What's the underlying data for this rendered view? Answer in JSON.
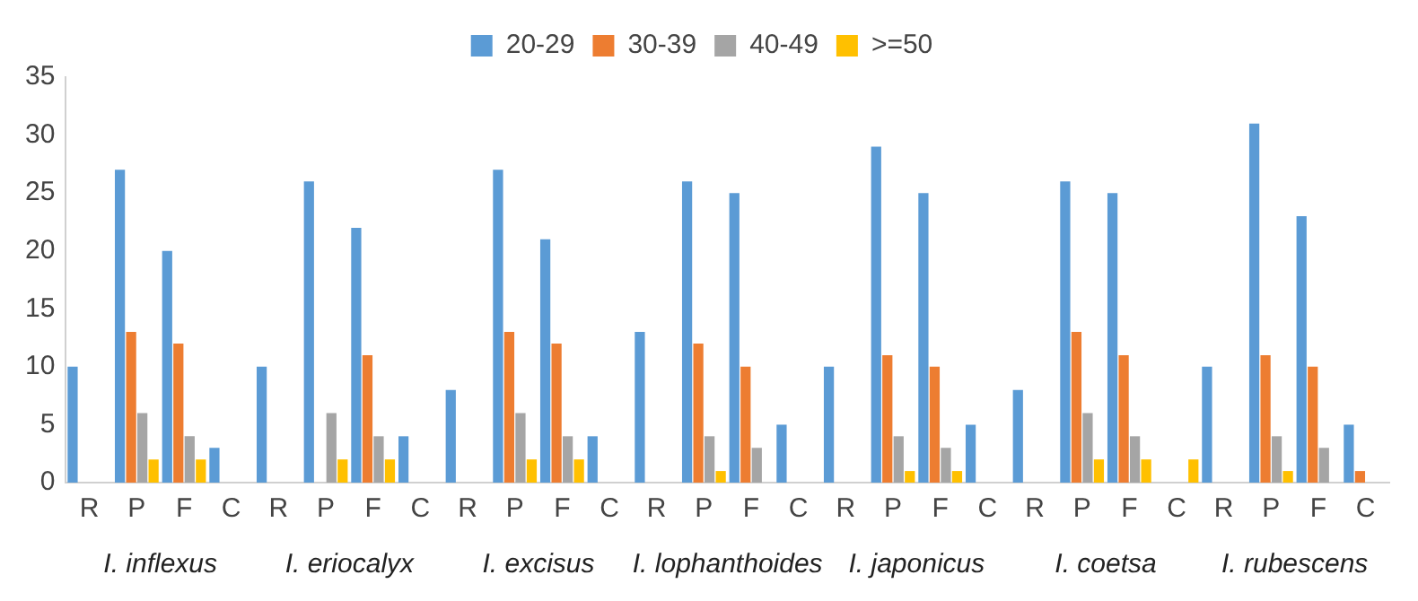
{
  "chart_data": {
    "type": "bar",
    "categories": [
      "R",
      "P",
      "F",
      "C",
      "R",
      "P",
      "F",
      "C",
      "R",
      "P",
      "F",
      "C",
      "R",
      "P",
      "F",
      "C",
      "R",
      "P",
      "F",
      "C",
      "R",
      "P",
      "F",
      "C",
      "R",
      "P",
      "F",
      "C"
    ],
    "series": [
      {
        "name": "20-29",
        "color": "#5b9bd5",
        "values": [
          10,
          27,
          20,
          3,
          10,
          26,
          22,
          4,
          8,
          27,
          21,
          4,
          13,
          26,
          25,
          5,
          10,
          29,
          25,
          5,
          8,
          26,
          25,
          0,
          10,
          31,
          23,
          5
        ]
      },
      {
        "name": "30-39",
        "color": "#ed7d31",
        "values": [
          0,
          13,
          12,
          0,
          0,
          0,
          11,
          0,
          0,
          13,
          12,
          0,
          0,
          12,
          10,
          0,
          0,
          11,
          10,
          0,
          0,
          13,
          11,
          0,
          0,
          11,
          10,
          1
        ]
      },
      {
        "name": "40-49",
        "color": "#a5a5a5",
        "values": [
          0,
          6,
          4,
          0,
          0,
          6,
          4,
          0,
          0,
          6,
          4,
          0,
          0,
          4,
          3,
          0,
          0,
          4,
          3,
          0,
          0,
          6,
          4,
          0,
          0,
          4,
          3,
          0
        ]
      },
      {
        "name": ">=50",
        "color": "#ffc000",
        "values": [
          0,
          2,
          2,
          0,
          0,
          2,
          2,
          0,
          0,
          2,
          2,
          0,
          0,
          1,
          0,
          0,
          0,
          1,
          1,
          0,
          0,
          2,
          2,
          2,
          0,
          1,
          0,
          0
        ]
      }
    ],
    "ylim": [
      0,
      35
    ],
    "yticks": [
      0,
      5,
      10,
      15,
      20,
      25,
      30,
      35
    ],
    "grid": false,
    "legend": "top",
    "annotations": [
      "I. inflexus",
      "I. eriocalyx",
      "I. excisus",
      "I. lophanthoides",
      "I. japonicus",
      "I. coetsa",
      "I. rubescens"
    ]
  }
}
